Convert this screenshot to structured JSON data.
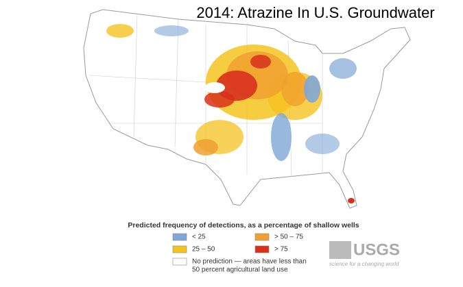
{
  "header": {
    "title": "2014: Atrazine In U.S. Groundwater"
  },
  "legend": {
    "title": "Predicted frequency of detections, as a percentage of shallow wells",
    "items": [
      {
        "label": "< 25",
        "color": "#7fa6d6"
      },
      {
        "label": "> 50 – 75",
        "color": "#f0a030"
      },
      {
        "label": "25 – 50",
        "color": "#f5c320"
      },
      {
        "label": "> 75",
        "color": "#d8301c"
      },
      {
        "label": [
          "No prediction — areas have less than",
          "50 percent agricultural land use"
        ],
        "color": "#ffffff"
      }
    ]
  },
  "logo": {
    "name": "USGS",
    "tagline": "science for a changing world"
  }
}
